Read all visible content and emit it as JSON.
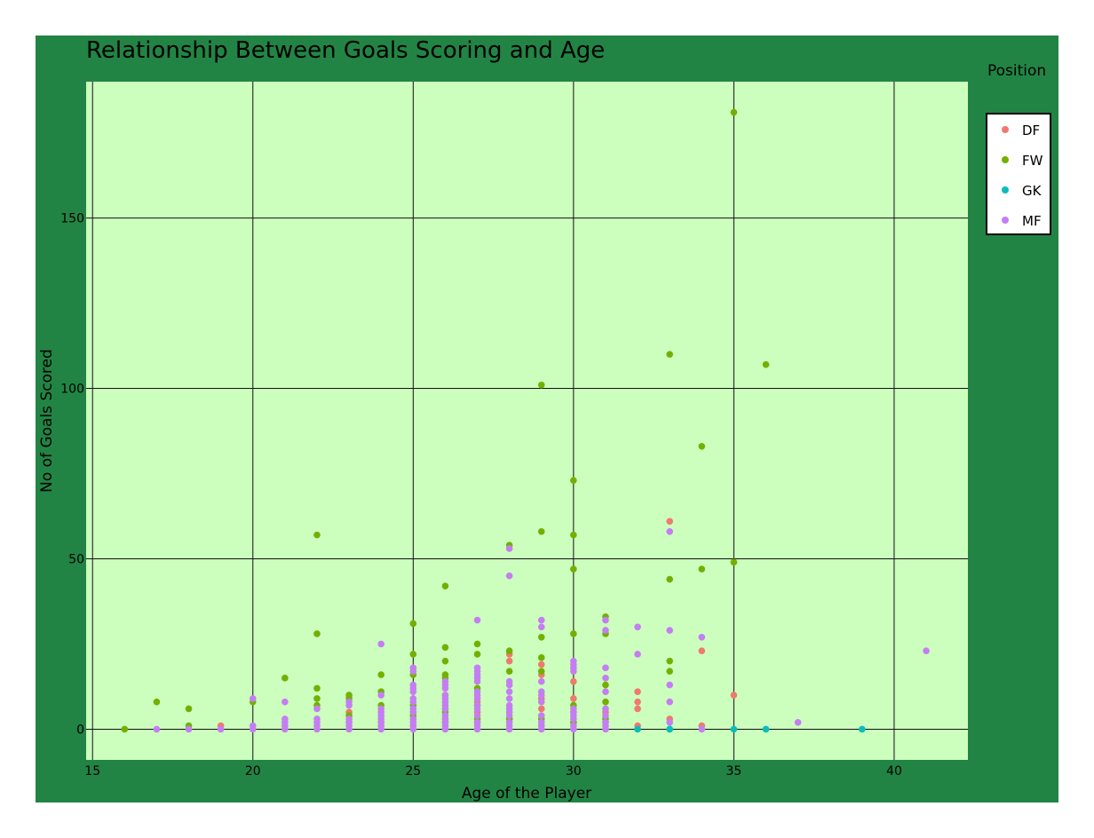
{
  "colors": {
    "paper": "#228444",
    "plot_bg": "#ccffbe",
    "grid": "#111111",
    "DF": "#ef7a6d",
    "FW": "#72b000",
    "GK": "#0cbcbc",
    "MF": "#c57ef2"
  },
  "chart_data": {
    "type": "scatter",
    "title": "Relationship Between Goals Scoring and Age",
    "xlabel": "Age of the Player",
    "ylabel": "No of Goals Scored",
    "xlim": [
      14.8,
      42.3
    ],
    "ylim": [
      -9,
      190
    ],
    "xticks": [
      15,
      20,
      25,
      30,
      35,
      40
    ],
    "yticks": [
      0,
      50,
      100,
      150
    ],
    "grid": true,
    "legend": {
      "title": "Position",
      "placement": "top-right",
      "entries": [
        "DF",
        "FW",
        "GK",
        "MF"
      ]
    },
    "series": [
      {
        "name": "DF",
        "points": [
          [
            19,
            1
          ],
          [
            23,
            5
          ],
          [
            23,
            2
          ],
          [
            25,
            5
          ],
          [
            26,
            3
          ],
          [
            26,
            6
          ],
          [
            27,
            2
          ],
          [
            27,
            5
          ],
          [
            27,
            8
          ],
          [
            28,
            22
          ],
          [
            28,
            20
          ],
          [
            28,
            3
          ],
          [
            29,
            19
          ],
          [
            29,
            16
          ],
          [
            29,
            9
          ],
          [
            29,
            6
          ],
          [
            29,
            1
          ],
          [
            30,
            14
          ],
          [
            30,
            9
          ],
          [
            30,
            5
          ],
          [
            30,
            2
          ],
          [
            31,
            5
          ],
          [
            31,
            2
          ],
          [
            32,
            11
          ],
          [
            32,
            8
          ],
          [
            32,
            6
          ],
          [
            32,
            1
          ],
          [
            33,
            61
          ],
          [
            33,
            3
          ],
          [
            34,
            23
          ],
          [
            34,
            1
          ],
          [
            35,
            10
          ]
        ]
      },
      {
        "name": "FW",
        "points": [
          [
            16,
            0
          ],
          [
            17,
            8
          ],
          [
            18,
            6
          ],
          [
            18,
            1
          ],
          [
            20,
            8
          ],
          [
            21,
            15
          ],
          [
            22,
            57
          ],
          [
            22,
            28
          ],
          [
            22,
            12
          ],
          [
            22,
            9
          ],
          [
            22,
            7
          ],
          [
            23,
            10
          ],
          [
            23,
            9
          ],
          [
            23,
            4
          ],
          [
            24,
            16
          ],
          [
            24,
            11
          ],
          [
            24,
            7
          ],
          [
            24,
            2
          ],
          [
            25,
            31
          ],
          [
            25,
            22
          ],
          [
            25,
            16
          ],
          [
            25,
            7
          ],
          [
            25,
            4
          ],
          [
            25,
            1
          ],
          [
            26,
            42
          ],
          [
            26,
            24
          ],
          [
            26,
            20
          ],
          [
            26,
            16
          ],
          [
            26,
            15
          ],
          [
            26,
            10
          ],
          [
            26,
            5
          ],
          [
            26,
            2
          ],
          [
            27,
            25
          ],
          [
            27,
            22
          ],
          [
            27,
            12
          ],
          [
            27,
            7
          ],
          [
            27,
            3
          ],
          [
            28,
            54
          ],
          [
            28,
            23
          ],
          [
            28,
            17
          ],
          [
            28,
            3
          ],
          [
            29,
            101
          ],
          [
            29,
            58
          ],
          [
            29,
            27
          ],
          [
            29,
            21
          ],
          [
            29,
            17
          ],
          [
            29,
            3
          ],
          [
            30,
            73
          ],
          [
            30,
            57
          ],
          [
            30,
            47
          ],
          [
            30,
            28
          ],
          [
            30,
            7
          ],
          [
            30,
            2
          ],
          [
            31,
            33
          ],
          [
            31,
            28
          ],
          [
            31,
            13
          ],
          [
            31,
            8
          ],
          [
            31,
            3
          ],
          [
            33,
            110
          ],
          [
            33,
            44
          ],
          [
            33,
            20
          ],
          [
            33,
            17
          ],
          [
            34,
            83
          ],
          [
            34,
            47
          ],
          [
            35,
            181
          ],
          [
            35,
            49
          ],
          [
            36,
            107
          ]
        ]
      },
      {
        "name": "GK",
        "points": [
          [
            32,
            0
          ],
          [
            33,
            0
          ],
          [
            33,
            0
          ],
          [
            35,
            0
          ],
          [
            36,
            0
          ],
          [
            39,
            0
          ]
        ]
      },
      {
        "name": "MF",
        "points": [
          [
            17,
            0
          ],
          [
            18,
            0
          ],
          [
            19,
            0
          ],
          [
            20,
            9
          ],
          [
            20,
            1
          ],
          [
            20,
            0
          ],
          [
            21,
            8
          ],
          [
            21,
            3
          ],
          [
            21,
            2
          ],
          [
            21,
            1
          ],
          [
            21,
            0
          ],
          [
            22,
            6
          ],
          [
            22,
            3
          ],
          [
            22,
            2
          ],
          [
            22,
            1
          ],
          [
            22,
            0
          ],
          [
            23,
            8
          ],
          [
            23,
            7
          ],
          [
            23,
            3
          ],
          [
            23,
            2
          ],
          [
            23,
            1
          ],
          [
            23,
            0
          ],
          [
            24,
            25
          ],
          [
            24,
            10
          ],
          [
            24,
            6
          ],
          [
            24,
            5
          ],
          [
            24,
            4
          ],
          [
            24,
            3
          ],
          [
            24,
            2
          ],
          [
            24,
            1
          ],
          [
            24,
            0
          ],
          [
            25,
            18
          ],
          [
            25,
            17
          ],
          [
            25,
            13
          ],
          [
            25,
            12
          ],
          [
            25,
            11
          ],
          [
            25,
            9
          ],
          [
            25,
            8
          ],
          [
            25,
            6
          ],
          [
            25,
            5
          ],
          [
            25,
            3
          ],
          [
            25,
            2
          ],
          [
            25,
            1
          ],
          [
            25,
            0
          ],
          [
            26,
            14
          ],
          [
            26,
            13
          ],
          [
            26,
            12
          ],
          [
            26,
            10
          ],
          [
            26,
            9
          ],
          [
            26,
            8
          ],
          [
            26,
            7
          ],
          [
            26,
            6
          ],
          [
            26,
            4
          ],
          [
            26,
            3
          ],
          [
            26,
            2
          ],
          [
            26,
            1
          ],
          [
            26,
            0
          ],
          [
            27,
            32
          ],
          [
            27,
            18
          ],
          [
            27,
            17
          ],
          [
            27,
            16
          ],
          [
            27,
            15
          ],
          [
            27,
            14
          ],
          [
            27,
            11
          ],
          [
            27,
            10
          ],
          [
            27,
            9
          ],
          [
            27,
            7
          ],
          [
            27,
            6
          ],
          [
            27,
            4
          ],
          [
            27,
            2
          ],
          [
            27,
            1
          ],
          [
            27,
            0
          ],
          [
            28,
            53
          ],
          [
            28,
            45
          ],
          [
            28,
            14
          ],
          [
            28,
            13
          ],
          [
            28,
            11
          ],
          [
            28,
            9
          ],
          [
            28,
            7
          ],
          [
            28,
            6
          ],
          [
            28,
            5
          ],
          [
            28,
            4
          ],
          [
            28,
            2
          ],
          [
            28,
            1
          ],
          [
            28,
            0
          ],
          [
            29,
            32
          ],
          [
            29,
            30
          ],
          [
            29,
            14
          ],
          [
            29,
            11
          ],
          [
            29,
            10
          ],
          [
            29,
            8
          ],
          [
            29,
            4
          ],
          [
            29,
            2
          ],
          [
            29,
            1
          ],
          [
            29,
            0
          ],
          [
            30,
            20
          ],
          [
            30,
            19
          ],
          [
            30,
            18
          ],
          [
            30,
            17
          ],
          [
            30,
            6
          ],
          [
            30,
            5
          ],
          [
            30,
            4
          ],
          [
            30,
            3
          ],
          [
            30,
            1
          ],
          [
            30,
            0
          ],
          [
            31,
            32
          ],
          [
            31,
            29
          ],
          [
            31,
            18
          ],
          [
            31,
            15
          ],
          [
            31,
            11
          ],
          [
            31,
            6
          ],
          [
            31,
            4
          ],
          [
            31,
            2
          ],
          [
            31,
            1
          ],
          [
            31,
            0
          ],
          [
            32,
            30
          ],
          [
            32,
            22
          ],
          [
            33,
            58
          ],
          [
            33,
            29
          ],
          [
            33,
            13
          ],
          [
            33,
            8
          ],
          [
            33,
            2
          ],
          [
            34,
            27
          ],
          [
            34,
            0
          ],
          [
            37,
            2
          ],
          [
            41,
            23
          ]
        ]
      }
    ]
  }
}
